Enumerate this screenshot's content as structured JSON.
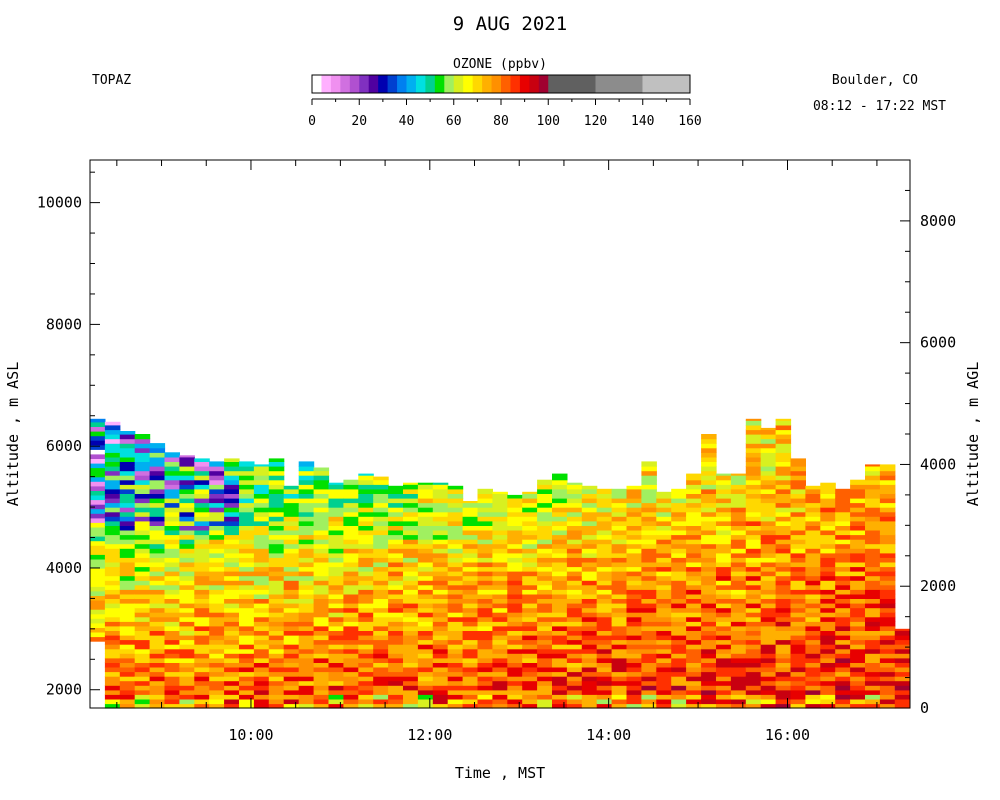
{
  "header": {
    "title": "9 AUG 2021",
    "site": "TOPAZ",
    "location": "Boulder, CO",
    "time_range": "08:12 - 17:22 MST"
  },
  "colorbar": {
    "label": "OZONE (ppbv)",
    "ticks": [
      "0",
      "20",
      "40",
      "60",
      "80",
      "100",
      "120",
      "140",
      "160"
    ],
    "colors": [
      "#ffffff",
      "#ffb0ff",
      "#f090f0",
      "#d070e0",
      "#b050d0",
      "#8030c0",
      "#5000a0",
      "#0000b0",
      "#0040d0",
      "#0080f0",
      "#00b0f0",
      "#00e0e0",
      "#00d090",
      "#00e000",
      "#a0f060",
      "#d8f020",
      "#ffff00",
      "#ffd800",
      "#ffb000",
      "#ff9000",
      "#ff6000",
      "#ff3000",
      "#e80000",
      "#c80010",
      "#a00030",
      "#606060",
      "#8c8c8c",
      "#c0c0c0"
    ]
  },
  "chart_data": {
    "type": "heatmap",
    "title": "9 AUG 2021",
    "xlabel": "Time , MST",
    "ylabel_left": "Altitude , m ASL",
    "ylabel_right": "Altitude , m AGL",
    "x_ticks": [
      "10:00",
      "12:00",
      "14:00",
      "16:00"
    ],
    "y_left_ticks": [
      "2000",
      "4000",
      "6000",
      "8000",
      "10000"
    ],
    "y_right_ticks": [
      "0",
      "2000",
      "4000",
      "6000",
      "8000"
    ],
    "xlim_hours": [
      8.2,
      17.37
    ],
    "ylim_asl_m": [
      1700,
      10700
    ],
    "ground_asl_m": 1700,
    "colorbar_range_ppbv": [
      0,
      160
    ],
    "profile_interval_min": 10,
    "profile_top_asl_m": [
      6450,
      6400,
      6250,
      6200,
      6050,
      5900,
      5850,
      5800,
      5750,
      5800,
      5750,
      5700,
      5800,
      5350,
      5750,
      5650,
      5400,
      5450,
      5550,
      5500,
      5350,
      5400,
      5400,
      5400,
      5350,
      5100,
      5300,
      5250,
      5200,
      5250,
      5450,
      5550,
      5400,
      5350,
      5300,
      5300,
      5350,
      5750,
      5250,
      5300,
      5550,
      6200,
      5550,
      5550,
      6450,
      6300,
      6450,
      5800,
      5350,
      5400,
      5300,
      5450,
      5700,
      5700,
      3000
    ],
    "ozone_ppbv_profile": [
      {
        "altitude_asl_m": 2000,
        "early": 80,
        "late": 88
      },
      {
        "altitude_asl_m": 3000,
        "early": 72,
        "late": 84
      },
      {
        "altitude_asl_m": 4000,
        "early": 64,
        "late": 80
      },
      {
        "altitude_asl_m": 5000,
        "early": 52,
        "late": 76
      },
      {
        "altitude_asl_m": 6000,
        "early": 44,
        "late": 74
      }
    ]
  }
}
